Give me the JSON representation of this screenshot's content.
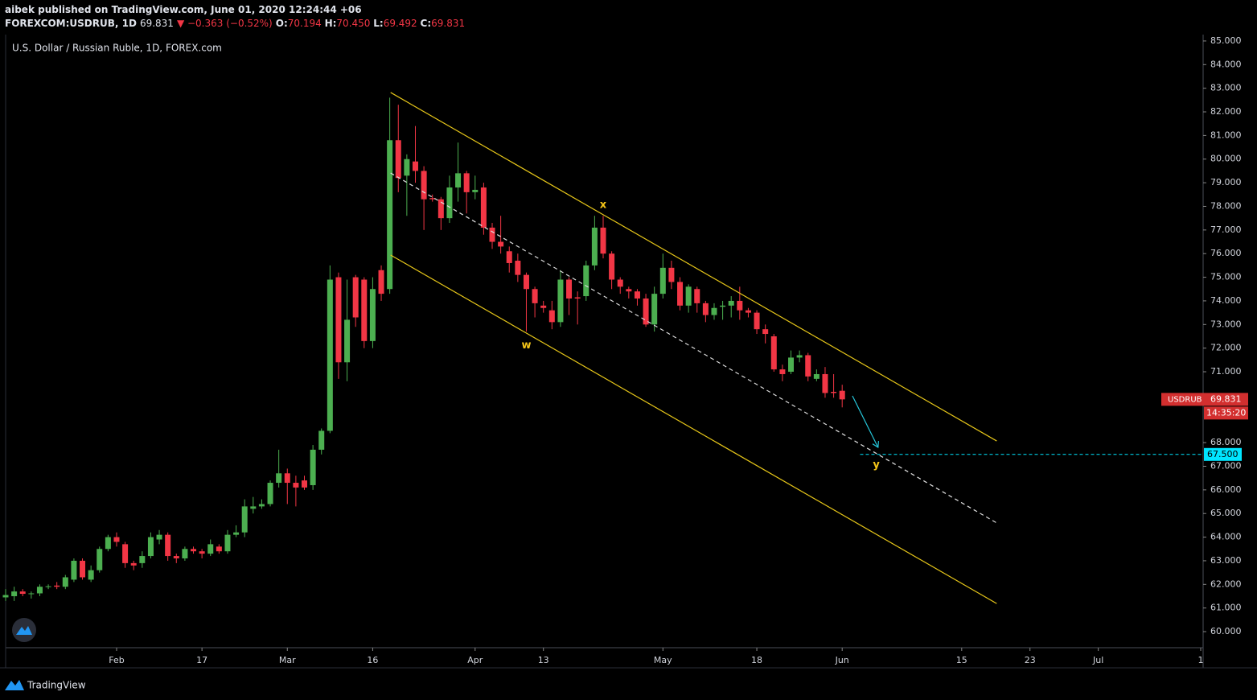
{
  "header": {
    "publisher": "aibek published on TradingView.com, June 01, 2020 12:24:44 +06",
    "symbol": "FOREXCOM:USDRUB, 1D",
    "last": "69.831",
    "change": "▼ −0.363 (−0.52%)",
    "o_label": "O:",
    "o": "70.194",
    "h_label": "H:",
    "h": "70.450",
    "l_label": "L:",
    "l": "69.492",
    "c_label": "C:",
    "c": "69.831"
  },
  "footer": {
    "brand": "TradingView"
  },
  "chart_data": {
    "type": "candlestick",
    "title": "U.S. Dollar / Russian Ruble, 1D, FOREX.com",
    "up_color": "#4caf50",
    "down_color": "#f23645",
    "grid": false,
    "categories": [
      null,
      null,
      null,
      null,
      null,
      null,
      null,
      null,
      null,
      null,
      null,
      null,
      null,
      "Feb",
      null,
      null,
      null,
      null,
      null,
      null,
      null,
      null,
      null,
      "17",
      null,
      null,
      null,
      null,
      null,
      null,
      null,
      null,
      null,
      "Mar",
      null,
      null,
      null,
      null,
      null,
      null,
      null,
      null,
      null,
      "16",
      null,
      null,
      null,
      null,
      null,
      null,
      null,
      null,
      null,
      null,
      null,
      "Apr",
      null,
      null,
      null,
      null,
      null,
      null,
      null,
      "13",
      null,
      null,
      null,
      null,
      null,
      null,
      null,
      null,
      null,
      null,
      null,
      null,
      null,
      "May",
      null,
      null,
      null,
      null,
      null,
      null,
      null,
      null,
      null,
      null,
      "18",
      null,
      null,
      null,
      null,
      null,
      null,
      null,
      null,
      null,
      "Jun",
      null,
      null,
      null,
      null,
      null,
      null,
      null,
      null,
      null,
      null,
      null,
      null,
      null,
      "15",
      null,
      null,
      null,
      null,
      null,
      null,
      null,
      "23",
      null,
      null,
      null,
      null,
      null,
      null,
      null,
      "Jul",
      null,
      null,
      null,
      null,
      null,
      null,
      null,
      null,
      null,
      null,
      null,
      "1"
    ],
    "open": [
      61.45,
      61.5,
      61.7,
      61.6,
      61.62,
      61.9,
      61.95,
      61.9,
      62.2,
      63.0,
      62.2,
      62.6,
      63.5,
      64.0,
      63.7,
      62.9,
      62.9,
      63.2,
      63.9,
      64.1,
      63.2,
      63.1,
      63.5,
      63.4,
      63.3,
      63.6,
      63.4,
      64.1,
      64.2,
      65.2,
      65.3,
      65.4,
      66.3,
      66.7,
      66.3,
      66.4,
      66.2,
      67.7,
      68.5,
      75.0,
      71.4,
      75.0,
      74.9,
      72.3,
      75.3,
      74.5,
      80.8,
      79.3,
      79.9,
      79.5,
      78.35,
      78.3,
      77.5,
      78.8,
      79.4,
      78.6,
      78.8,
      77.1,
      76.5,
      76.1,
      75.7,
      75.1,
      74.5,
      73.8,
      73.6,
      73.1,
      74.9,
      74.15,
      74.2,
      75.5,
      77.1,
      76.0,
      74.9,
      74.5,
      74.4,
      74.1,
      73.0,
      74.3,
      75.4,
      74.8,
      73.8,
      74.5,
      73.9,
      73.4,
      73.75,
      73.8,
      74.0,
      73.6,
      73.5,
      72.8,
      72.5,
      71.1,
      71.0,
      71.6,
      71.7,
      70.7,
      70.9,
      70.15,
      70.194,
      null,
      null,
      null,
      null,
      null,
      null,
      null,
      null,
      null,
      null,
      null,
      null,
      null,
      null,
      null,
      null,
      null,
      null,
      null,
      null,
      null,
      null,
      null,
      null,
      null,
      null,
      null,
      null,
      null,
      null,
      null,
      null,
      null,
      null,
      null,
      null,
      null,
      null,
      null,
      null,
      null,
      null
    ],
    "high": [
      61.8,
      61.9,
      61.8,
      61.7,
      62.0,
      62.0,
      62.1,
      62.4,
      63.1,
      63.1,
      62.8,
      63.6,
      64.1,
      64.2,
      63.8,
      63.0,
      63.4,
      64.2,
      64.3,
      64.2,
      63.3,
      63.6,
      63.6,
      63.5,
      63.9,
      63.7,
      64.3,
      64.5,
      65.6,
      65.7,
      65.6,
      66.4,
      67.7,
      66.9,
      66.6,
      66.6,
      67.9,
      68.6,
      75.5,
      75.2,
      74.9,
      75.1,
      75.0,
      75.0,
      75.5,
      82.6,
      82.3,
      80.2,
      81.4,
      79.7,
      78.5,
      78.4,
      79.3,
      80.7,
      79.5,
      79.3,
      79.0,
      77.3,
      77.6,
      76.3,
      76.0,
      75.2,
      74.6,
      74.0,
      74.0,
      75.3,
      75.0,
      74.4,
      75.7,
      77.6,
      77.6,
      76.1,
      75.0,
      74.6,
      74.5,
      74.3,
      74.6,
      76.0,
      75.7,
      75.0,
      74.7,
      74.6,
      74.0,
      73.9,
      74.0,
      74.2,
      74.6,
      73.7,
      73.6,
      73.0,
      72.6,
      71.3,
      71.9,
      71.9,
      71.8,
      71.1,
      71.2,
      70.9,
      70.45,
      null,
      null,
      null,
      null,
      null,
      null,
      null,
      null,
      null,
      null,
      null,
      null,
      null,
      null,
      null,
      null,
      null,
      null,
      null,
      null,
      null,
      null,
      null,
      null,
      null,
      null,
      null,
      null,
      null,
      null,
      null,
      null,
      null,
      null,
      null,
      null,
      null,
      null,
      null,
      null,
      null,
      null
    ],
    "low": [
      61.3,
      61.3,
      61.5,
      61.4,
      61.5,
      61.8,
      61.8,
      61.8,
      62.1,
      62.2,
      62.1,
      62.5,
      63.4,
      63.6,
      62.7,
      62.6,
      62.7,
      63.1,
      63.7,
      63.0,
      62.9,
      63.0,
      63.3,
      63.1,
      63.2,
      63.3,
      63.3,
      64.0,
      64.0,
      65.0,
      65.2,
      65.3,
      66.1,
      65.4,
      65.3,
      66.0,
      66.0,
      67.5,
      68.4,
      70.7,
      70.6,
      72.9,
      72.0,
      72.0,
      74.0,
      74.3,
      78.6,
      77.6,
      79.0,
      77.0,
      78.2,
      77.0,
      77.3,
      78.2,
      77.7,
      78.3,
      76.8,
      76.2,
      76.0,
      75.2,
      74.8,
      72.7,
      73.3,
      73.5,
      72.8,
      72.9,
      73.4,
      73.0,
      74.0,
      75.3,
      75.8,
      74.5,
      74.3,
      74.1,
      73.8,
      72.9,
      72.7,
      74.1,
      74.5,
      73.6,
      73.5,
      73.5,
      73.1,
      73.2,
      73.2,
      73.3,
      73.2,
      73.3,
      72.6,
      72.2,
      71.0,
      70.6,
      70.9,
      71.4,
      70.6,
      70.6,
      69.9,
      69.9,
      69.492,
      null,
      null,
      null,
      null,
      null,
      null,
      null,
      null,
      null,
      null,
      null,
      null,
      null,
      null,
      null,
      null,
      null,
      null,
      null,
      null,
      null,
      null,
      null,
      null,
      null,
      null,
      null,
      null,
      null,
      null,
      null,
      null,
      null,
      null,
      null,
      null,
      null,
      null,
      null,
      null,
      null,
      null
    ],
    "close": [
      61.55,
      61.7,
      61.6,
      61.62,
      61.9,
      61.92,
      61.9,
      62.3,
      63.0,
      62.3,
      62.6,
      63.5,
      64.0,
      63.8,
      62.9,
      62.8,
      63.2,
      64.0,
      64.1,
      63.2,
      63.1,
      63.5,
      63.4,
      63.3,
      63.7,
      63.4,
      64.1,
      64.2,
      65.3,
      65.3,
      65.4,
      66.3,
      66.7,
      66.3,
      66.1,
      66.1,
      67.7,
      68.5,
      74.9,
      71.4,
      73.2,
      73.3,
      72.3,
      74.5,
      74.3,
      80.8,
      79.2,
      80.0,
      79.5,
      78.3,
      78.3,
      77.5,
      78.8,
      79.4,
      78.6,
      78.7,
      77.1,
      76.5,
      76.3,
      75.6,
      75.1,
      74.5,
      73.9,
      73.7,
      73.1,
      74.9,
      74.1,
      74.1,
      75.5,
      77.1,
      76.0,
      74.9,
      74.6,
      74.4,
      74.1,
      73.0,
      74.3,
      75.4,
      74.8,
      73.8,
      74.6,
      73.9,
      73.4,
      73.7,
      73.8,
      74.0,
      73.6,
      73.5,
      72.8,
      72.6,
      71.1,
      70.9,
      71.6,
      71.7,
      70.8,
      70.9,
      70.1,
      70.1,
      69.831,
      null,
      null,
      null,
      null,
      null,
      null,
      null,
      null,
      null,
      null,
      null,
      null,
      null,
      null,
      null,
      null,
      null,
      null,
      null,
      null,
      null,
      null,
      null,
      null,
      null,
      null,
      null,
      null,
      null,
      null,
      null,
      null,
      null,
      null,
      null,
      null,
      null,
      null,
      null,
      null,
      null,
      null
    ],
    "ylim": [
      59.32,
      85.27
    ],
    "yticks": [
      {
        "value": 60,
        "label": "60.000"
      },
      {
        "value": 61,
        "label": "61.000"
      },
      {
        "value": 62,
        "label": "62.000"
      },
      {
        "value": 63,
        "label": "63.000"
      },
      {
        "value": 64,
        "label": "64.000"
      },
      {
        "value": 65,
        "label": "65.000"
      },
      {
        "value": 66,
        "label": "66.000"
      },
      {
        "value": 67,
        "label": "67.000"
      },
      {
        "value": 68,
        "label": "68.000"
      },
      {
        "value": 71,
        "label": "71.000"
      },
      {
        "value": 72,
        "label": "72.000"
      },
      {
        "value": 73,
        "label": "73.000"
      },
      {
        "value": 74,
        "label": "74.000"
      },
      {
        "value": 75,
        "label": "75.000"
      },
      {
        "value": 76,
        "label": "76.000"
      },
      {
        "value": 77,
        "label": "77.000"
      },
      {
        "value": 78,
        "label": "78.000"
      },
      {
        "value": 79,
        "label": "79.000"
      },
      {
        "value": 80,
        "label": "80.000"
      },
      {
        "value": 81,
        "label": "81.000"
      },
      {
        "value": 82,
        "label": "82.000"
      },
      {
        "value": 83,
        "label": "83.000"
      },
      {
        "value": 84,
        "label": "84.000"
      },
      {
        "value": 85,
        "label": "85.000"
      }
    ],
    "price_label": {
      "symbol": "USDRUB",
      "value": 69.831,
      "countdown": "14:35:20",
      "color": "#d32f2f"
    },
    "level": {
      "value": 67.5,
      "label": "67.500",
      "color": "#00e5ff",
      "from": 100.1
    },
    "trend_lines": [
      {
        "color": "#e6c619",
        "dashed": false,
        "x": [
          45.1,
          116.1
        ],
        "y": [
          82.82,
          68.07
        ]
      },
      {
        "color": "#e6c619",
        "dashed": false,
        "x": [
          45.1,
          116.1
        ],
        "y": [
          75.94,
          61.19
        ]
      },
      {
        "color": "#dddddd",
        "dashed": true,
        "x": [
          45.1,
          116.1
        ],
        "y": [
          79.41,
          64.6
        ]
      }
    ],
    "arrow": {
      "color": "#26c6da",
      "x": [
        99.2,
        102.2
      ],
      "y": [
        69.98,
        67.8
      ]
    },
    "annotations": [
      {
        "text": "x",
        "x": 70,
        "y": 78.05
      },
      {
        "text": "w",
        "x": 61,
        "y": 72.1
      },
      {
        "text": "y",
        "x": 102,
        "y": 67.05
      }
    ],
    "annotation_color": "#f5c518"
  }
}
